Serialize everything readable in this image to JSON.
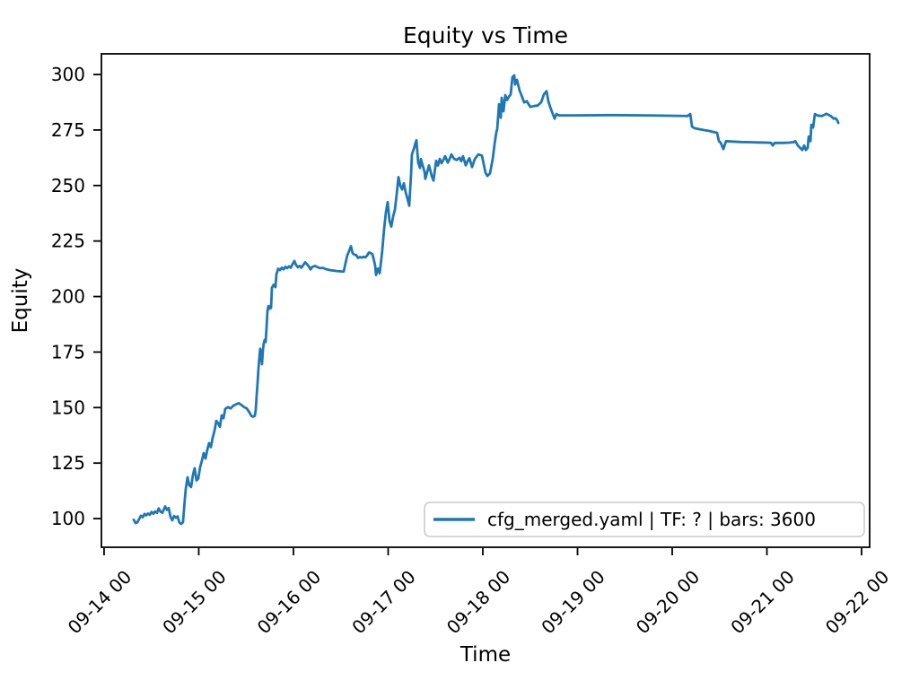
{
  "chart_data": {
    "type": "line",
    "title": "Equity vs Time",
    "xlabel": "Time",
    "ylabel": "Equity",
    "grid": false,
    "axes": {
      "xlim_days": [
        13.972,
        22.085
      ],
      "ylim": [
        87.1,
        309.3
      ],
      "x_ticks": [
        {
          "day": 14,
          "label": "09-14 00"
        },
        {
          "day": 15,
          "label": "09-15 00"
        },
        {
          "day": 16,
          "label": "09-16 00"
        },
        {
          "day": 17,
          "label": "09-17 00"
        },
        {
          "day": 18,
          "label": "09-18 00"
        },
        {
          "day": 19,
          "label": "09-19 00"
        },
        {
          "day": 20,
          "label": "09-20 00"
        },
        {
          "day": 21,
          "label": "09-21 00"
        },
        {
          "day": 22,
          "label": "09-22 00"
        }
      ],
      "y_ticks": [
        100,
        125,
        150,
        175,
        200,
        225,
        250,
        275,
        300
      ]
    },
    "legend": {
      "position": "lower right",
      "entries": [
        {
          "label": "cfg_merged.yaml | TF: ? | bars: 3600",
          "color": "#1f77b4"
        }
      ]
    },
    "series": [
      {
        "name": "cfg_merged.yaml | TF: ? | bars: 3600",
        "color": "#1f77b4",
        "linewidth": 2.8,
        "points": [
          [
            14.313,
            99.5
          ],
          [
            14.332,
            98.0
          ],
          [
            14.351,
            98.3
          ],
          [
            14.37,
            99.8
          ],
          [
            14.389,
            101.3
          ],
          [
            14.408,
            100.6
          ],
          [
            14.427,
            102.1
          ],
          [
            14.445,
            101.5
          ],
          [
            14.464,
            102.3
          ],
          [
            14.483,
            101.7
          ],
          [
            14.502,
            103.0
          ],
          [
            14.521,
            102.2
          ],
          [
            14.54,
            103.2
          ],
          [
            14.559,
            102.6
          ],
          [
            14.578,
            104.6
          ],
          [
            14.597,
            103.1
          ],
          [
            14.616,
            102.6
          ],
          [
            14.645,
            105.5
          ],
          [
            14.664,
            103.9
          ],
          [
            14.683,
            104.7
          ],
          [
            14.701,
            100.9
          ],
          [
            14.72,
            99.2
          ],
          [
            14.739,
            101.2
          ],
          [
            14.758,
            100.4
          ],
          [
            14.777,
            101.0
          ],
          [
            14.796,
            98.2
          ],
          [
            14.815,
            97.6
          ],
          [
            14.834,
            98.4
          ],
          [
            14.853,
            109.0
          ],
          [
            14.863,
            113.4
          ],
          [
            14.882,
            118.6
          ],
          [
            14.9,
            115.0
          ],
          [
            14.919,
            114.2
          ],
          [
            14.938,
            119.5
          ],
          [
            14.957,
            122.7
          ],
          [
            14.976,
            117.2
          ],
          [
            14.995,
            118.0
          ],
          [
            15.014,
            123.0
          ],
          [
            15.033,
            126.0
          ],
          [
            15.052,
            129.5
          ],
          [
            15.071,
            127.0
          ],
          [
            15.09,
            131.0
          ],
          [
            15.109,
            134.0
          ],
          [
            15.128,
            132.2
          ],
          [
            15.147,
            136.5
          ],
          [
            15.166,
            139.5
          ],
          [
            15.185,
            144.0
          ],
          [
            15.204,
            143.0
          ],
          [
            15.223,
            141.3
          ],
          [
            15.242,
            146.5
          ],
          [
            15.261,
            145.2
          ],
          [
            15.28,
            149.4
          ],
          [
            15.308,
            150.2
          ],
          [
            15.336,
            149.6
          ],
          [
            15.365,
            150.8
          ],
          [
            15.393,
            151.4
          ],
          [
            15.422,
            152.0
          ],
          [
            15.45,
            151.2
          ],
          [
            15.479,
            150.2
          ],
          [
            15.507,
            149.6
          ],
          [
            15.536,
            147.8
          ],
          [
            15.555,
            146.3
          ],
          [
            15.573,
            145.9
          ],
          [
            15.592,
            146.3
          ],
          [
            15.602,
            149.0
          ],
          [
            15.611,
            155.0
          ],
          [
            15.621,
            161.0
          ],
          [
            15.63,
            167.0
          ],
          [
            15.64,
            172.5
          ],
          [
            15.649,
            176.5
          ],
          [
            15.659,
            174.0
          ],
          [
            15.668,
            169.5
          ],
          [
            15.678,
            176.0
          ],
          [
            15.687,
            179.0
          ],
          [
            15.697,
            180.5
          ],
          [
            15.706,
            179.5
          ],
          [
            15.716,
            186.0
          ],
          [
            15.725,
            193.5
          ],
          [
            15.735,
            195.6
          ],
          [
            15.744,
            194.5
          ],
          [
            15.754,
            195.8
          ],
          [
            15.763,
            194.8
          ],
          [
            15.773,
            204.0
          ],
          [
            15.792,
            205.3
          ],
          [
            15.81,
            204.2
          ],
          [
            15.82,
            210.0
          ],
          [
            15.839,
            212.6
          ],
          [
            15.858,
            211.9
          ],
          [
            15.877,
            213.0
          ],
          [
            15.896,
            212.2
          ],
          [
            15.915,
            213.4
          ],
          [
            15.934,
            212.8
          ],
          [
            15.953,
            213.6
          ],
          [
            15.972,
            213.0
          ],
          [
            15.991,
            214.6
          ],
          [
            16.01,
            216.0
          ],
          [
            16.028,
            214.2
          ],
          [
            16.047,
            213.2
          ],
          [
            16.066,
            213.8
          ],
          [
            16.085,
            213.0
          ],
          [
            16.104,
            214.2
          ],
          [
            16.123,
            215.4
          ],
          [
            16.142,
            214.6
          ],
          [
            16.161,
            213.6
          ],
          [
            16.18,
            212.2
          ],
          [
            16.199,
            213.4
          ],
          [
            16.227,
            213.8
          ],
          [
            16.256,
            213.2
          ],
          [
            16.284,
            212.8
          ],
          [
            16.313,
            212.9
          ],
          [
            16.341,
            212.4
          ],
          [
            16.37,
            212.0
          ],
          [
            16.398,
            211.8
          ],
          [
            16.427,
            211.7
          ],
          [
            16.455,
            211.5
          ],
          [
            16.483,
            211.4
          ],
          [
            16.512,
            211.3
          ],
          [
            16.531,
            211.3
          ],
          [
            16.55,
            215.0
          ],
          [
            16.569,
            218.6
          ],
          [
            16.588,
            220.5
          ],
          [
            16.607,
            222.7
          ],
          [
            16.626,
            219.4
          ],
          [
            16.645,
            218.9
          ],
          [
            16.664,
            218.6
          ],
          [
            16.682,
            217.4
          ],
          [
            16.701,
            217.8
          ],
          [
            16.72,
            217.5
          ],
          [
            16.739,
            217.9
          ],
          [
            16.758,
            217.6
          ],
          [
            16.777,
            218.4
          ],
          [
            16.796,
            219.8
          ],
          [
            16.815,
            219.6
          ],
          [
            16.834,
            219.0
          ],
          [
            16.853,
            215.8
          ],
          [
            16.863,
            213.8
          ],
          [
            16.872,
            209.7
          ],
          [
            16.891,
            212.6
          ],
          [
            16.91,
            210.5
          ],
          [
            16.919,
            213.4
          ],
          [
            16.938,
            220.6
          ],
          [
            16.957,
            230.0
          ],
          [
            16.976,
            238.0
          ],
          [
            16.995,
            242.5
          ],
          [
            17.014,
            234.0
          ],
          [
            17.033,
            231.5
          ],
          [
            17.052,
            236.0
          ],
          [
            17.071,
            239.0
          ],
          [
            17.09,
            246.0
          ],
          [
            17.109,
            253.8
          ],
          [
            17.128,
            250.0
          ],
          [
            17.147,
            248.2
          ],
          [
            17.166,
            251.0
          ],
          [
            17.185,
            247.0
          ],
          [
            17.204,
            244.1
          ],
          [
            17.223,
            240.9
          ],
          [
            17.242,
            255.0
          ],
          [
            17.251,
            264.0
          ],
          [
            17.27,
            266.4
          ],
          [
            17.289,
            269.2
          ],
          [
            17.299,
            270.4
          ],
          [
            17.318,
            260.3
          ],
          [
            17.337,
            257.9
          ],
          [
            17.346,
            261.9
          ],
          [
            17.365,
            259.0
          ],
          [
            17.384,
            256.3
          ],
          [
            17.393,
            253.0
          ],
          [
            17.412,
            256.0
          ],
          [
            17.431,
            259.1
          ],
          [
            17.45,
            256.0
          ],
          [
            17.46,
            254.3
          ],
          [
            17.479,
            252.2
          ],
          [
            17.507,
            261.1
          ],
          [
            17.526,
            259.0
          ],
          [
            17.545,
            262.0
          ],
          [
            17.564,
            260.0
          ],
          [
            17.583,
            261.5
          ],
          [
            17.602,
            263.2
          ],
          [
            17.63,
            260.3
          ],
          [
            17.649,
            262.0
          ],
          [
            17.668,
            264.0
          ],
          [
            17.697,
            262.0
          ],
          [
            17.725,
            261.5
          ],
          [
            17.754,
            262.5
          ],
          [
            17.773,
            261.0
          ],
          [
            17.791,
            263.2
          ],
          [
            17.82,
            259.1
          ],
          [
            17.839,
            261.0
          ],
          [
            17.858,
            262.3
          ],
          [
            17.886,
            258.3
          ],
          [
            17.915,
            261.9
          ],
          [
            17.953,
            264.0
          ],
          [
            17.991,
            263.5
          ],
          [
            18.028,
            255.9
          ],
          [
            18.047,
            254.3
          ],
          [
            18.076,
            255.5
          ],
          [
            18.104,
            262.0
          ],
          [
            18.123,
            268.4
          ],
          [
            18.142,
            274.0
          ],
          [
            18.152,
            275.3
          ],
          [
            18.171,
            286.6
          ],
          [
            18.19,
            280.5
          ],
          [
            18.199,
            289.5
          ],
          [
            18.218,
            283.4
          ],
          [
            18.237,
            290.7
          ],
          [
            18.256,
            288.5
          ],
          [
            18.275,
            290.0
          ],
          [
            18.294,
            291.0
          ],
          [
            18.313,
            298.8
          ],
          [
            18.332,
            299.6
          ],
          [
            18.341,
            295.5
          ],
          [
            18.36,
            297.6
          ],
          [
            18.389,
            292.7
          ],
          [
            18.408,
            290.7
          ],
          [
            18.436,
            287.4
          ],
          [
            18.464,
            288.0
          ],
          [
            18.502,
            285.4
          ],
          [
            18.54,
            285.8
          ],
          [
            18.578,
            286.0
          ],
          [
            18.616,
            287.5
          ],
          [
            18.645,
            291.0
          ],
          [
            18.673,
            292.5
          ],
          [
            18.692,
            288.0
          ],
          [
            18.711,
            285.4
          ],
          [
            18.739,
            282.2
          ],
          [
            18.758,
            280.1
          ],
          [
            18.777,
            282.2
          ],
          [
            18.806,
            281.6
          ],
          [
            18.976,
            281.6
          ],
          [
            19.355,
            281.7
          ],
          [
            19.735,
            281.6
          ],
          [
            20.161,
            281.3
          ],
          [
            20.19,
            282.2
          ],
          [
            20.209,
            276.5
          ],
          [
            20.237,
            275.8
          ],
          [
            20.303,
            275.2
          ],
          [
            20.398,
            274.5
          ],
          [
            20.474,
            273.7
          ],
          [
            20.493,
            270.0
          ],
          [
            20.512,
            269.3
          ],
          [
            20.54,
            266.4
          ],
          [
            20.569,
            270.0
          ],
          [
            20.635,
            269.8
          ],
          [
            20.73,
            269.6
          ],
          [
            20.825,
            269.5
          ],
          [
            20.919,
            269.4
          ],
          [
            21.014,
            269.3
          ],
          [
            21.043,
            269.2
          ],
          [
            21.062,
            268.0
          ],
          [
            21.081,
            269.2
          ],
          [
            21.156,
            269.2
          ],
          [
            21.232,
            269.3
          ],
          [
            21.28,
            269.5
          ],
          [
            21.299,
            270.0
          ],
          [
            21.327,
            268.0
          ],
          [
            21.346,
            267.2
          ],
          [
            21.374,
            266.0
          ],
          [
            21.393,
            268.0
          ],
          [
            21.412,
            266.0
          ],
          [
            21.431,
            267.0
          ],
          [
            21.441,
            272.1
          ],
          [
            21.46,
            270.0
          ],
          [
            21.469,
            277.3
          ],
          [
            21.488,
            276.1
          ],
          [
            21.507,
            282.2
          ],
          [
            21.536,
            281.5
          ],
          [
            21.583,
            281.3
          ],
          [
            21.63,
            282.3
          ],
          [
            21.678,
            281.2
          ],
          [
            21.706,
            280.1
          ],
          [
            21.725,
            280.3
          ],
          [
            21.744,
            279.3
          ],
          [
            21.754,
            278.2
          ]
        ]
      }
    ]
  }
}
